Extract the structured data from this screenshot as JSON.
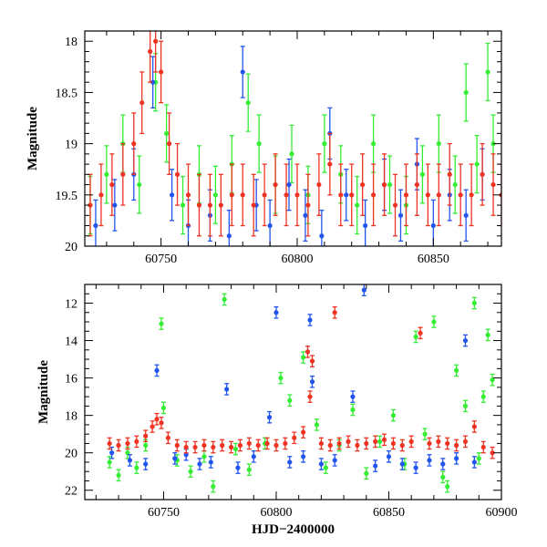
{
  "chart_data": [
    {
      "type": "scatter",
      "panel": "top",
      "ylabel": "Magnitude",
      "xlim": [
        60722,
        60875
      ],
      "ylim": [
        20,
        17.9
      ],
      "y_inverted": true,
      "x_ticks": [
        60750,
        60800,
        60850
      ],
      "y_ticks": [
        18,
        18.5,
        19,
        19.5,
        20
      ],
      "x_tick_labels": [
        "60750",
        "60800",
        "60850"
      ],
      "y_tick_labels": [
        "18",
        "18.5",
        "19",
        "19.5",
        "20"
      ],
      "series": [
        {
          "color": "#33ee33",
          "error": 0.28,
          "x": [
            60724,
            60730,
            60736,
            60742,
            60748,
            60752,
            60758,
            60764,
            60770,
            60776,
            60782,
            60786,
            60792,
            60798,
            60804,
            60810,
            60816,
            60822,
            60828,
            60834,
            60840,
            60846,
            60852,
            60858,
            60862,
            60866,
            60870,
            60872
          ],
          "y": [
            19.6,
            19.3,
            19.0,
            19.4,
            18.4,
            18.9,
            19.6,
            19.3,
            19.5,
            19.2,
            18.6,
            19.0,
            19.4,
            19.1,
            19.5,
            19.0,
            19.3,
            19.6,
            19.0,
            19.4,
            19.6,
            19.3,
            19.0,
            19.4,
            18.5,
            19.2,
            18.3,
            19.0
          ]
        },
        {
          "color": "#2255ee",
          "error": 0.25,
          "x": [
            60726,
            60733,
            60740,
            60747,
            60754,
            60760,
            60768,
            60775,
            60780,
            60785,
            60790,
            60797,
            60803,
            60809,
            60812,
            60818,
            60825,
            60832,
            60838,
            60844,
            60850,
            60856,
            60862,
            60868
          ],
          "y": [
            19.8,
            19.6,
            19.3,
            18.4,
            19.5,
            19.8,
            19.7,
            19.9,
            18.3,
            19.6,
            19.8,
            19.4,
            19.7,
            19.9,
            18.9,
            19.5,
            19.8,
            19.4,
            19.7,
            19.2,
            19.8,
            19.5,
            19.7,
            19.3
          ]
        },
        {
          "color": "#ee3322",
          "error": 0.3,
          "x": [
            60724,
            60728,
            60732,
            60736,
            60740,
            60743,
            60746,
            60748,
            60750,
            60753,
            60756,
            60760,
            60764,
            60768,
            60772,
            60776,
            60780,
            60784,
            60788,
            60792,
            60796,
            60800,
            60804,
            60808,
            60812,
            60816,
            60820,
            60824,
            60828,
            60832,
            60836,
            60840,
            60844,
            60848,
            60852,
            60856,
            60860,
            60864,
            60868,
            60872,
            60875
          ],
          "y": [
            19.6,
            19.5,
            19.4,
            19.3,
            19.0,
            18.6,
            18.1,
            18.0,
            18.3,
            19.0,
            19.3,
            19.5,
            19.6,
            19.6,
            19.6,
            19.5,
            19.5,
            19.6,
            19.5,
            19.4,
            19.5,
            19.5,
            19.6,
            19.4,
            19.2,
            19.5,
            19.5,
            19.4,
            19.5,
            19.4,
            19.6,
            19.5,
            19.4,
            19.5,
            19.5,
            19.3,
            19.5,
            19.5,
            19.3,
            19.4,
            19.5
          ]
        }
      ]
    },
    {
      "type": "scatter",
      "panel": "bottom",
      "xlabel": "HJD−2400000",
      "ylabel": "Magnitude",
      "xlim": [
        60715,
        60900
      ],
      "ylim": [
        22.5,
        11
      ],
      "y_inverted": true,
      "x_ticks": [
        60750,
        60800,
        60850,
        60900
      ],
      "y_ticks": [
        12,
        14,
        16,
        18,
        20,
        22
      ],
      "x_tick_labels": [
        "60750",
        "60800",
        "60850",
        "60900"
      ],
      "y_tick_labels": [
        "12",
        "14",
        "16",
        "18",
        "20",
        "22"
      ],
      "series": [
        {
          "color": "#33ee33",
          "error": 0.3,
          "x": [
            60726,
            60730,
            60734,
            60738,
            60742,
            60749,
            60750,
            60756,
            60762,
            60768,
            60772,
            60777,
            60782,
            60788,
            60795,
            60802,
            60806,
            60812,
            60818,
            60822,
            60828,
            60834,
            60840,
            60846,
            60852,
            60857,
            60862,
            60866,
            60870,
            60874,
            60876,
            60880,
            60884,
            60888,
            60890,
            60892,
            60894,
            60896
          ],
          "y": [
            20.5,
            21.2,
            20.0,
            20.8,
            19.6,
            13.1,
            17.6,
            20.4,
            21.0,
            20.2,
            21.8,
            11.8,
            19.8,
            20.9,
            19.5,
            16.0,
            17.2,
            14.9,
            18.5,
            20.8,
            19.6,
            17.7,
            21.1,
            19.4,
            18.0,
            20.6,
            13.8,
            19.0,
            13.0,
            21.3,
            21.8,
            15.6,
            17.5,
            12.0,
            20.3,
            17.0,
            13.7,
            16.1
          ]
        },
        {
          "color": "#2255ee",
          "error": 0.3,
          "x": [
            60727,
            60735,
            60742,
            60747,
            60755,
            60760,
            60766,
            60771,
            60778,
            60783,
            60790,
            60797,
            60800,
            60806,
            60812,
            60815,
            60816,
            60820,
            60826,
            60834,
            60839,
            60844,
            60850,
            60856,
            60862,
            60868,
            60874,
            60880,
            60884,
            60888
          ],
          "y": [
            20.0,
            20.4,
            20.6,
            15.6,
            20.3,
            20.1,
            20.6,
            20.5,
            16.6,
            20.8,
            20.2,
            18.1,
            12.5,
            20.5,
            20.2,
            12.9,
            16.2,
            20.6,
            20.4,
            17.0,
            11.3,
            20.7,
            20.2,
            20.6,
            20.8,
            20.4,
            20.6,
            20.3,
            14.0,
            20.5
          ]
        },
        {
          "color": "#ee3322",
          "error": 0.3,
          "x": [
            60726,
            60730,
            60734,
            60738,
            60742,
            60745,
            60747,
            60749,
            60752,
            60756,
            60760,
            60764,
            60768,
            60772,
            60776,
            60780,
            60784,
            60788,
            60792,
            60796,
            60800,
            60804,
            60808,
            60812,
            60814,
            60815,
            60816,
            60820,
            60824,
            60826,
            60828,
            60832,
            60836,
            60840,
            60844,
            60848,
            60852,
            60856,
            60860,
            60864,
            60868,
            60872,
            60876,
            60880,
            60884,
            60888,
            60892,
            60896
          ],
          "y": [
            19.5,
            19.6,
            19.5,
            19.4,
            19.1,
            18.6,
            18.2,
            18.4,
            19.2,
            19.6,
            19.7,
            19.7,
            19.6,
            19.7,
            19.6,
            19.7,
            19.6,
            19.5,
            19.6,
            19.5,
            19.6,
            19.5,
            19.2,
            18.9,
            14.6,
            17.0,
            15.1,
            19.5,
            19.6,
            12.5,
            19.5,
            19.4,
            19.6,
            19.5,
            19.4,
            19.3,
            19.5,
            19.6,
            19.4,
            13.6,
            19.5,
            19.4,
            19.5,
            19.6,
            19.4,
            18.6,
            19.7,
            20.0
          ]
        }
      ]
    }
  ]
}
